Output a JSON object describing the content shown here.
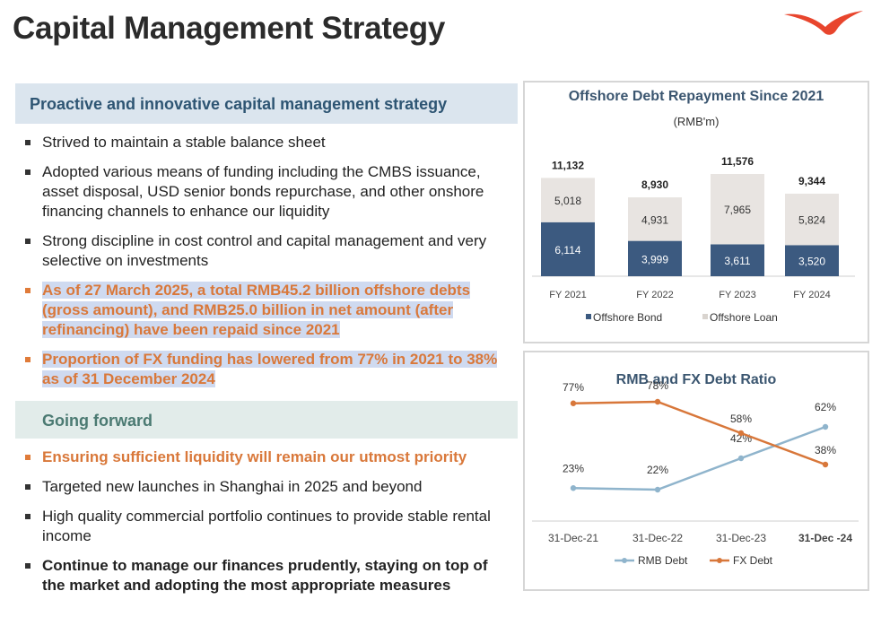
{
  "page_title": "Capital Management Strategy",
  "section1": {
    "title": "Proactive and innovative capital management strategy",
    "bullets": [
      {
        "text": "Strived to maintain a stable balance sheet"
      },
      {
        "text": "Adopted various means of funding including the CMBS issuance, asset disposal, USD senior bonds repurchase, and other onshore financing channels to enhance our liquidity"
      },
      {
        "text": "Strong discipline in cost control and capital management and very selective on investments"
      },
      {
        "text": "As of 27 March 2025, a total RMB45.2 billion offshore debts (gross amount), and RMB25.0 billion in net amount (after refinancing) have been repaid since 2021"
      },
      {
        "text": "Proportion of FX funding has lowered from 77% in 2021 to 38% as of 31 December 2024"
      }
    ]
  },
  "section2": {
    "title": "Going forward",
    "bullets": [
      {
        "text": "Ensuring sufficient liquidity will remain our utmost priority"
      },
      {
        "text": "Targeted new launches in Shanghai in 2025 and beyond"
      },
      {
        "text": "High quality commercial portfolio continues to provide stable rental income"
      },
      {
        "text": "Continue to manage our finances prudently, staying on top of the market and adopting the most appropriate measures"
      }
    ]
  },
  "chart_data": [
    {
      "type": "bar",
      "stacked": true,
      "title": "Offshore Debt Repayment Since 2021",
      "subtitle": "(RMB'm)",
      "categories": [
        "FY 2021",
        "FY 2022",
        "FY 2023",
        "FY 2024"
      ],
      "series": [
        {
          "name": "Offshore Bond",
          "values": [
            6114,
            3999,
            3611,
            3520
          ],
          "color": "#3c5a80"
        },
        {
          "name": "Offshore Loan",
          "values": [
            5018,
            4931,
            7965,
            5824
          ],
          "color": "#e8e4e1"
        }
      ],
      "totals": [
        11132,
        8930,
        11576,
        9344
      ],
      "value_labels": {
        "Offshore Bond": [
          "6,114",
          "3,999",
          "3,611",
          "3,520"
        ],
        "Offshore Loan": [
          "5,018",
          "4,931",
          "7,965",
          "5,824"
        ],
        "totals": [
          "11,132",
          "8,930",
          "11,576",
          "9,344"
        ]
      },
      "legend_position": "bottom",
      "grid": false
    },
    {
      "type": "line",
      "title": "RMB and FX Debt Ratio",
      "categories": [
        "31-Dec-21",
        "31-Dec-22",
        "31-Dec-23",
        "31-Dec -24"
      ],
      "series": [
        {
          "name": "RMB Debt",
          "values": [
            23,
            22,
            42,
            62
          ],
          "labels": [
            "23%",
            "22%",
            "42%",
            "62%"
          ],
          "color": "#8fb4cc"
        },
        {
          "name": "FX Debt",
          "values": [
            77,
            78,
            58,
            38
          ],
          "labels": [
            "77%",
            "78%",
            "58%",
            "38%"
          ],
          "color": "#d8773a"
        }
      ],
      "ylim": [
        0,
        100
      ],
      "legend_position": "bottom",
      "grid": false
    }
  ]
}
